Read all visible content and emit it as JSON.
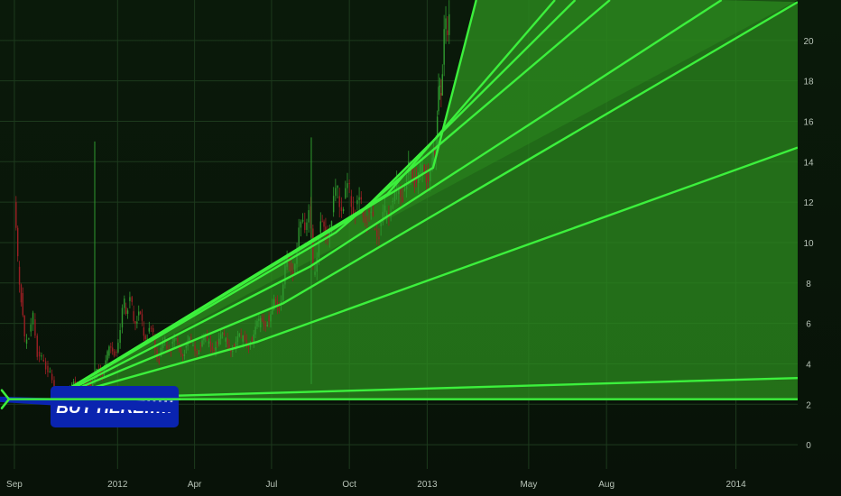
{
  "chart_data": {
    "type": "line",
    "instrument": "price",
    "x_axis": {
      "tick_labels": [
        "Sep",
        "2012",
        "Apr",
        "Jul",
        "Oct",
        "2013",
        "May",
        "Aug",
        "2014"
      ],
      "range": [
        "2011-08-15",
        "2014-03-15"
      ]
    },
    "y_axis": {
      "side": "right",
      "tick_labels": [
        "0",
        "2",
        "4",
        "6",
        "8",
        "10",
        "12",
        "14",
        "16",
        "18",
        "20"
      ],
      "ylim": [
        -1.2,
        22
      ]
    },
    "grid": true,
    "price_series": {
      "description_style": "candlestick",
      "points": [
        [
          "2011-09-01",
          12.0
        ],
        [
          "2011-09-05",
          8.8
        ],
        [
          "2011-09-09",
          7.5
        ],
        [
          "2011-09-13",
          5.0
        ],
        [
          "2011-09-18",
          5.6
        ],
        [
          "2011-09-23",
          6.2
        ],
        [
          "2011-09-28",
          4.6
        ],
        [
          "2011-10-03",
          4.2
        ],
        [
          "2011-10-08",
          3.9
        ],
        [
          "2011-10-13",
          3.5
        ],
        [
          "2011-10-18",
          2.6
        ],
        [
          "2011-10-23",
          2.4
        ],
        [
          "2011-11-01",
          2.6
        ],
        [
          "2011-11-08",
          2.8
        ],
        [
          "2011-11-14",
          3.0
        ],
        [
          "2011-11-20",
          2.6
        ],
        [
          "2011-11-28",
          3.2
        ],
        [
          "2011-12-05",
          3.3
        ],
        [
          "2011-12-12",
          3.6
        ],
        [
          "2011-12-20",
          4.4
        ],
        [
          "2011-12-28",
          4.6
        ],
        [
          "2012-01-04",
          5.8
        ],
        [
          "2012-01-09",
          6.8
        ],
        [
          "2012-01-13",
          7.1
        ],
        [
          "2012-01-18",
          6.6
        ],
        [
          "2012-01-24",
          6.4
        ],
        [
          "2012-01-30",
          5.8
        ],
        [
          "2012-02-05",
          5.6
        ],
        [
          "2012-02-12",
          5.2
        ],
        [
          "2012-02-19",
          4.4
        ],
        [
          "2012-02-26",
          4.9
        ],
        [
          "2012-03-04",
          5.0
        ],
        [
          "2012-03-12",
          4.8
        ],
        [
          "2012-03-20",
          4.8
        ],
        [
          "2012-03-28",
          4.9
        ],
        [
          "2012-04-06",
          4.9
        ],
        [
          "2012-04-16",
          5.0
        ],
        [
          "2012-04-26",
          5.1
        ],
        [
          "2012-05-06",
          5.1
        ],
        [
          "2012-05-16",
          5.0
        ],
        [
          "2012-05-26",
          5.1
        ],
        [
          "2012-06-06",
          5.3
        ],
        [
          "2012-06-16",
          5.8
        ],
        [
          "2012-06-26",
          6.4
        ],
        [
          "2012-07-02",
          6.7
        ],
        [
          "2012-07-10",
          7.0
        ],
        [
          "2012-07-17",
          8.8
        ],
        [
          "2012-07-24",
          8.6
        ],
        [
          "2012-07-31",
          9.7
        ],
        [
          "2012-08-07",
          11.0
        ],
        [
          "2012-08-14",
          11.8
        ],
        [
          "2012-08-19",
          8.4
        ],
        [
          "2012-08-26",
          10.5
        ],
        [
          "2012-09-03",
          10.4
        ],
        [
          "2012-09-10",
          11.5
        ],
        [
          "2012-09-17",
          12.3
        ],
        [
          "2012-09-24",
          12.2
        ],
        [
          "2012-10-01",
          12.3
        ],
        [
          "2012-10-08",
          11.9
        ],
        [
          "2012-10-15",
          11.5
        ],
        [
          "2012-10-22",
          11.6
        ],
        [
          "2012-10-29",
          10.7
        ],
        [
          "2012-11-05",
          10.8
        ],
        [
          "2012-11-12",
          11.2
        ],
        [
          "2012-11-19",
          12.0
        ],
        [
          "2012-11-26",
          12.4
        ],
        [
          "2012-12-03",
          12.6
        ],
        [
          "2012-12-10",
          13.4
        ],
        [
          "2012-12-17",
          13.3
        ],
        [
          "2012-12-24",
          13.4
        ],
        [
          "2012-12-31",
          13.4
        ],
        [
          "2013-01-07",
          13.8
        ],
        [
          "2013-01-10",
          14.2
        ],
        [
          "2013-01-13",
          16.5
        ],
        [
          "2013-01-16",
          17.4
        ],
        [
          "2013-01-19",
          18.8
        ],
        [
          "2013-01-23",
          20.5
        ],
        [
          "2013-01-27",
          22.0
        ]
      ],
      "spikes": [
        [
          "2011-12-05",
          15.0
        ],
        [
          "2012-08-17",
          15.2
        ]
      ]
    },
    "fan_lines": {
      "anchor": [
        "2011-10-15",
        2.25
      ],
      "lines": [
        {
          "to": [
            "2014-03-15",
            2.25
          ]
        },
        {
          "to": [
            "2014-03-15",
            3.3
          ]
        },
        {
          "via": [
            "2012-06-15",
            5.1
          ],
          "to": [
            "2014-03-15",
            14.7
          ]
        },
        {
          "via": [
            "2012-07-15",
            7.0
          ],
          "to": [
            "2014-03-15",
            21.9
          ]
        },
        {
          "via": [
            "2012-08-15",
            8.8
          ],
          "to": [
            "2013-12-15",
            22.0
          ]
        },
        {
          "via": [
            "2012-09-15",
            10.5
          ],
          "to": [
            "2013-08-05",
            22.0
          ]
        },
        {
          "via": [
            "2012-10-15",
            11.5
          ],
          "to": [
            "2013-06-25",
            22.0
          ]
        },
        {
          "via": [
            "2012-11-15",
            12.4
          ],
          "to": [
            "2013-06-01",
            22.0
          ]
        },
        {
          "via": [
            "2013-01-08",
            13.7
          ],
          "to": [
            "2013-02-28",
            22.0
          ]
        }
      ]
    },
    "annotation": {
      "text": "BUY HERE!!!!!",
      "points_to": [
        "2011-09-01",
        2.25
      ]
    },
    "colors": {
      "background_top": "#0a1a0a",
      "background_bottom": "#081208",
      "fan_fill": "#2b8a1e",
      "fan_line": "#3cf03c",
      "candle_up": "#2f9a2f",
      "candle_down": "#9a1f24",
      "callout_bg": "#0a24b0",
      "callout_arrow": "#3cf03c"
    }
  }
}
